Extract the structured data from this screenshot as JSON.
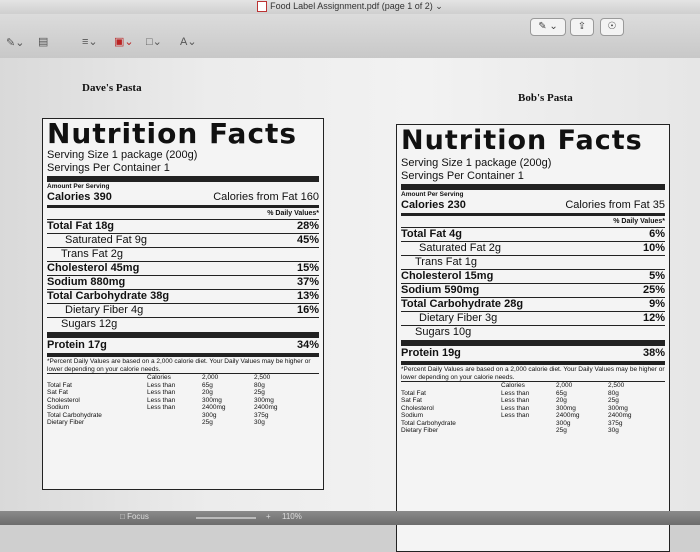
{
  "window": {
    "title": "Food Label Assignment.pdf (page 1 of 2)"
  },
  "toolbar": {
    "zoom_label": "A"
  },
  "statusbar": {
    "focus_label": "Focus",
    "zoom": "110%"
  },
  "labels": [
    {
      "caption": "Dave's Pasta",
      "title": "Nutrition Facts",
      "serving_size": "Serving Size 1 package (200g)",
      "servings_per_container": "Servings Per Container 1",
      "amount_per_serving": "Amount Per Serving",
      "calories": "Calories 390",
      "calories_from_fat": "Calories from Fat 160",
      "daily_value_header": "% Daily Values*",
      "nutrients": [
        {
          "name": "Total Fat 18g",
          "dv": "28%",
          "bold": true,
          "indent": 0
        },
        {
          "name": "Saturated Fat 9g",
          "dv": "45%",
          "bold": false,
          "indent": 1
        },
        {
          "name": "Trans Fat 2g",
          "dv": "",
          "bold": false,
          "indent": 2
        },
        {
          "name": "Cholesterol 45mg",
          "dv": "15%",
          "bold": true,
          "indent": 0
        },
        {
          "name": "Sodium 880mg",
          "dv": "37%",
          "bold": true,
          "indent": 0
        },
        {
          "name": "Total Carbohydrate 38g",
          "dv": "13%",
          "bold": true,
          "indent": 0
        },
        {
          "name": "Dietary Fiber 4g",
          "dv": "16%",
          "bold": false,
          "indent": 1
        },
        {
          "name": "Sugars 12g",
          "dv": "",
          "bold": false,
          "indent": 2
        }
      ],
      "protein": "Protein 17g",
      "protein_dv": "34%",
      "footnote": "*Percent Daily Values are based on a 2,000 calorie diet. Your Daily Values may be higher or lower depending on your calorie needs.",
      "footer_table": {
        "header": [
          "",
          "Calories",
          "2,000",
          "2,500"
        ],
        "rows": [
          [
            "Total Fat",
            "Less than",
            "65g",
            "80g"
          ],
          [
            "Sat Fat",
            "Less than",
            "20g",
            "25g"
          ],
          [
            "Cholesterol",
            "Less than",
            "300mg",
            "300mg"
          ],
          [
            "Sodium",
            "Less than",
            "2400mg",
            "2400mg"
          ],
          [
            "Total Carbohydrate",
            "",
            "300g",
            "375g"
          ],
          [
            "Dietary Fiber",
            "",
            "25g",
            "30g"
          ]
        ]
      }
    },
    {
      "caption": "Bob's Pasta",
      "title": "Nutrition Facts",
      "serving_size": "Serving Size 1 package (200g)",
      "servings_per_container": "Servings Per Container 1",
      "amount_per_serving": "Amount Per Serving",
      "calories": "Calories 230",
      "calories_from_fat": "Calories from Fat 35",
      "daily_value_header": "% Daily Values*",
      "nutrients": [
        {
          "name": "Total Fat 4g",
          "dv": "6%",
          "bold": true,
          "indent": 0
        },
        {
          "name": "Saturated Fat 2g",
          "dv": "10%",
          "bold": false,
          "indent": 1
        },
        {
          "name": "Trans Fat 1g",
          "dv": "",
          "bold": false,
          "indent": 2
        },
        {
          "name": "Cholesterol 15mg",
          "dv": "5%",
          "bold": true,
          "indent": 0
        },
        {
          "name": "Sodium 590mg",
          "dv": "25%",
          "bold": true,
          "indent": 0
        },
        {
          "name": "Total Carbohydrate 28g",
          "dv": "9%",
          "bold": true,
          "indent": 0
        },
        {
          "name": "Dietary Fiber 3g",
          "dv": "12%",
          "bold": false,
          "indent": 1
        },
        {
          "name": "Sugars 10g",
          "dv": "",
          "bold": false,
          "indent": 2
        }
      ],
      "protein": "Protein 19g",
      "protein_dv": "38%",
      "footnote": "*Percent Daily Values are based on a 2,000 calorie diet. Your Daily Values may be higher or lower depending on your calorie needs.",
      "footer_table": {
        "header": [
          "",
          "Calories",
          "2,000",
          "2,500"
        ],
        "rows": [
          [
            "Total Fat",
            "Less than",
            "65g",
            "80g"
          ],
          [
            "Sat Fat",
            "Less than",
            "20g",
            "25g"
          ],
          [
            "Cholesterol",
            "Less than",
            "300mg",
            "300mg"
          ],
          [
            "Sodium",
            "Less than",
            "2400mg",
            "2400mg"
          ],
          [
            "Total Carbohydrate",
            "",
            "300g",
            "375g"
          ],
          [
            "Dietary Fiber",
            "",
            "25g",
            "30g"
          ]
        ]
      }
    }
  ]
}
